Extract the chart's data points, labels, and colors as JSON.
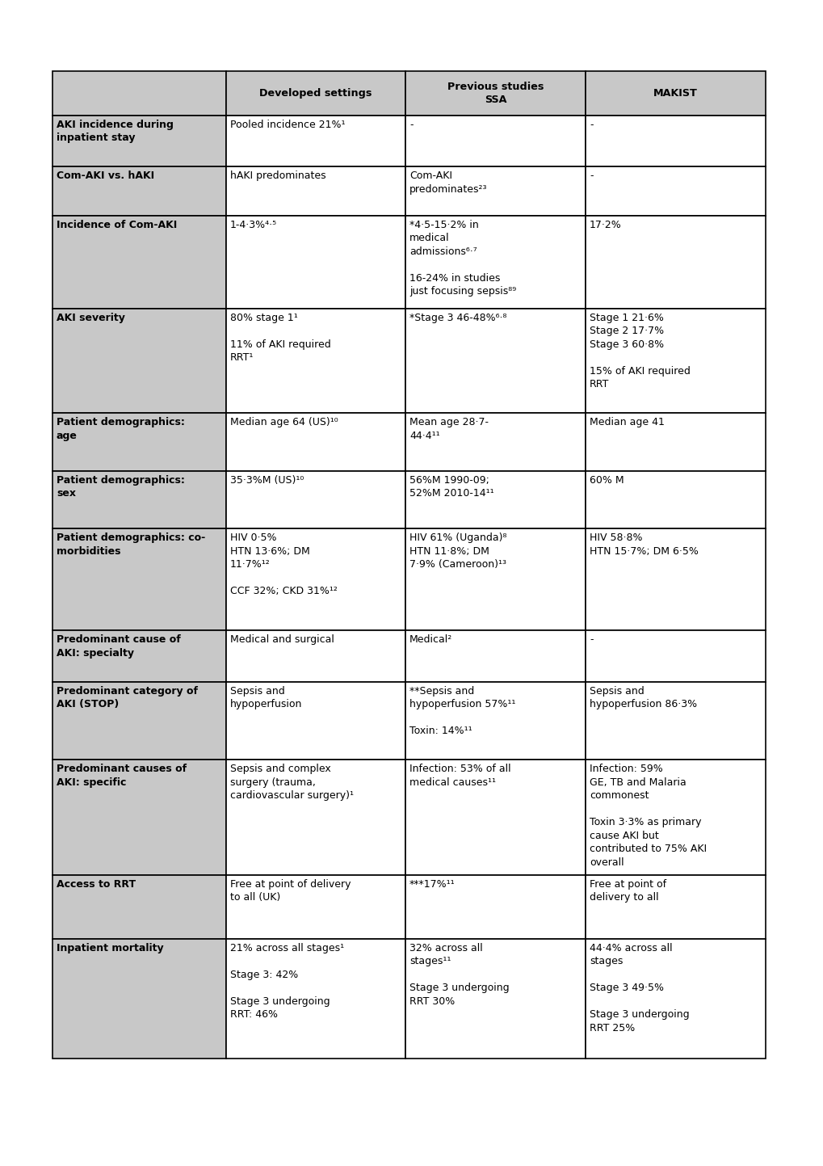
{
  "header_bg": "#c8c8c8",
  "row_bg_label": "#c8c8c8",
  "row_bg_data": "#ffffff",
  "border_color": "#000000",
  "headers": [
    "",
    "Developed settings",
    "Previous studies\nSSA",
    "MAKIST"
  ],
  "rows": [
    {
      "label": "AKI incidence during\ninpatient stay",
      "col1": "Pooled incidence 21%¹",
      "col2": "-",
      "col3": "-"
    },
    {
      "label": "Com-AKI vs. hAKI",
      "col1": "hAKI predominates",
      "col2": "Com-AKI\npredicominates²³",
      "col3": "-"
    },
    {
      "label": "Incidence of Com-AKI",
      "col1": "1-4·3%⁴·⁵",
      "col2": "*4·5-15·2% in\nmedical\nadmissions⁶·⁷\n\n16-24% in studies\njust focusing sepsis⁸⁹",
      "col3": "17·2%"
    },
    {
      "label": "AKI severity",
      "col1": "80% stage 1¹\n\n11% of AKI required\nRRT¹",
      "col2": "*Stage 3 46-48%⁶·⁸",
      "col3": "Stage 1 21·6%\nStage 2 17·7%\nStage 3 60·8%\n\n15% of AKI required\nRRT"
    },
    {
      "label": "Patient demographics:\nage",
      "col1": "Median age 64 (US)¹⁰",
      "col2": "Mean age 28·7-\n44·4¹¹",
      "col3": "Median age 41"
    },
    {
      "label": "Patient demographics:\nsex",
      "col1": "35·3%M (US)¹⁰",
      "col2": "56%M 1990-09;\n52%M 2010-14¹¹",
      "col3": "60% M"
    },
    {
      "label": "Patient demographics: co-\nmorbidities",
      "col1": "HIV 0·5%\nHTN 13·6%; DM\n11·7%¹²\n\nCCF 32%; CKD 31%¹²",
      "col2": "HIV 61% (Uganda)⁸\nHTN 11·8%; DM\n7·9% (Cameroon)¹³",
      "col3": "HIV 58·8%\nHTN 15·7%; DM 6·5%"
    },
    {
      "label": "Predominant cause of\nAKI: specialty",
      "col1": "Medical and surgical",
      "col2": "Medical²",
      "col3": "-"
    },
    {
      "label": "Predominant category of\nAKI (STOP)",
      "col1": "Sepsis and\nhypoperfusion",
      "col2": "**Sepsis and\nhypoperfusion 57%¹¹\n\nToxin: 14%¹¹",
      "col3": "Sepsis and\nhypoperfusion 86·3%"
    },
    {
      "label": "Predominant causes of\nAKI: specific",
      "col1": "Sepsis and complex\nsurgery (trauma,\ncardiovascular surgery)¹",
      "col2": "Infection: 53% of all\nmedical causes¹¹",
      "col3": "Infection: 59%\nGE, TB and Malaria\ncommonest\n\nToxin 3·3% as primary\ncause AKI but\ncontributed to 75% AKI\noverall"
    },
    {
      "label": "Access to RRT",
      "col1": "Free at point of delivery\nto all (UK)",
      "col2": "***17%¹¹",
      "col3": "Free at point of\ndelivery to all"
    },
    {
      "label": "Inpatient mortality",
      "col1": "21% across all stages¹\n\nStage 3: 42%\n\nStage 3 undergoing\nRRT: 46%",
      "col2": "32% across all\nstages¹¹\n\nStage 3 undergoing\nRRT 30%",
      "col3": "44·4% across all\nstages\n\nStage 3 49·5%\n\nStage 3 undergoing\nRRT 25%"
    }
  ]
}
